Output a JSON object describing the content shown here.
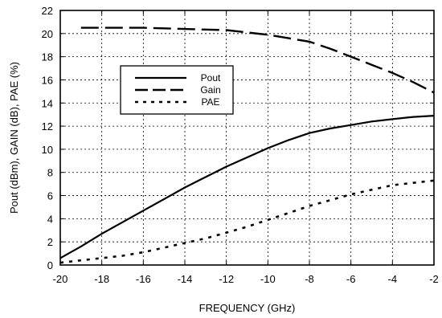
{
  "chart_data": {
    "type": "line",
    "title": "",
    "xlabel": "FREQUENCY (GHz)",
    "ylabel": "Pout (dBm), GAIN (dB), PAE (%)",
    "xlim": [
      -20,
      -2
    ],
    "ylim": [
      0,
      22
    ],
    "xticks": [
      -20,
      -18,
      -16,
      -14,
      -12,
      -10,
      -8,
      -6,
      -4,
      -2
    ],
    "yticks": [
      0,
      2,
      4,
      6,
      8,
      10,
      12,
      14,
      16,
      18,
      20,
      22
    ],
    "xtick_labels": [
      "-20",
      "-18",
      "-16",
      "-14",
      "-12",
      "-10",
      "-8",
      "-6",
      "-4",
      "-2"
    ],
    "ytick_labels": [
      "0",
      "2",
      "4",
      "6",
      "8",
      "10",
      "12",
      "14",
      "16",
      "18",
      "20",
      "22"
    ],
    "grid": true,
    "legend_position": "upper-left inside plot",
    "series": [
      {
        "name": "Pout",
        "style": "solid",
        "color": "#000000",
        "x": [
          -20,
          -19,
          -18,
          -17,
          -16,
          -15,
          -14,
          -13,
          -12,
          -11,
          -10,
          -9,
          -8,
          -7,
          -6,
          -5,
          -4,
          -3,
          -2
        ],
        "y": [
          0.6,
          1.6,
          2.7,
          3.7,
          4.7,
          5.7,
          6.7,
          7.6,
          8.5,
          9.3,
          10.1,
          10.8,
          11.4,
          11.8,
          12.1,
          12.4,
          12.6,
          12.8,
          12.9
        ]
      },
      {
        "name": "Gain",
        "style": "dashed",
        "color": "#000000",
        "x": [
          -19,
          -18,
          -17,
          -16,
          -15,
          -14,
          -13,
          -12,
          -11,
          -10,
          -9,
          -8,
          -7,
          -6,
          -5,
          -4,
          -3,
          -2
        ],
        "y": [
          20.5,
          20.5,
          20.5,
          20.5,
          20.45,
          20.4,
          20.35,
          20.3,
          20.1,
          19.9,
          19.6,
          19.3,
          18.7,
          18.0,
          17.3,
          16.6,
          15.8,
          14.9
        ]
      },
      {
        "name": "PAE",
        "style": "dotted",
        "color": "#000000",
        "x": [
          -20,
          -19,
          -18,
          -17,
          -16,
          -15,
          -14,
          -13,
          -12,
          -11,
          -10,
          -9,
          -8,
          -7,
          -6,
          -5,
          -4,
          -3,
          -2
        ],
        "y": [
          0.2,
          0.4,
          0.6,
          0.8,
          1.1,
          1.5,
          1.9,
          2.3,
          2.8,
          3.3,
          3.9,
          4.5,
          5.1,
          5.6,
          6.1,
          6.5,
          6.9,
          7.1,
          7.3
        ]
      }
    ]
  }
}
